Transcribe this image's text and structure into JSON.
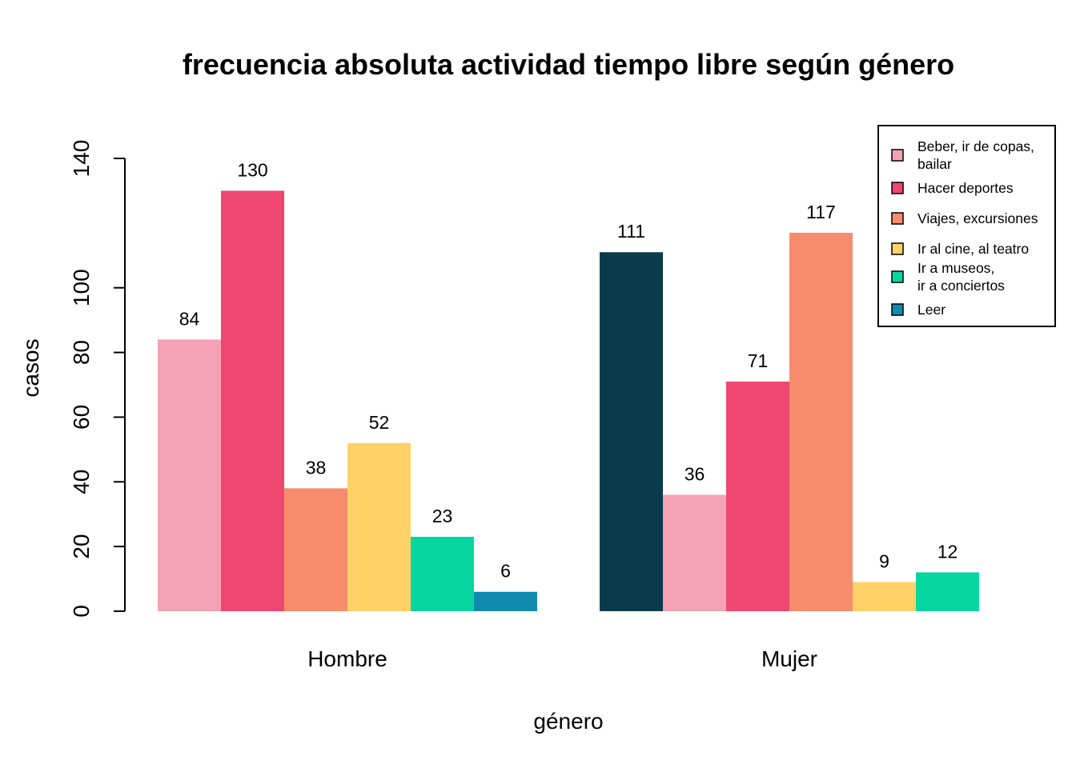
{
  "chart_data": {
    "type": "bar",
    "title": "frecuencia absoluta actividad tiempo libre según género",
    "xlabel": "género",
    "ylabel": "casos",
    "ylim": [
      0,
      140
    ],
    "yticks": [
      "0",
      "20",
      "40",
      "60",
      "80",
      "100",
      "140"
    ],
    "grid": false,
    "legend_position": "top-right",
    "colors": {
      "dark_teal": "#0A3B4B",
      "pink": "#F5A1B6",
      "red": "#EF476F",
      "salmon": "#F68C6B",
      "yellow": "#FFD166",
      "green": "#06D6A0",
      "blue": "#118AB2"
    },
    "legend": [
      {
        "label": "Beber, ir de copas,\nbailar",
        "color": "#F5A1B6"
      },
      {
        "label": "Hacer deportes",
        "color": "#EF476F"
      },
      {
        "label": "Viajes, excursiones",
        "color": "#F68C6B"
      },
      {
        "label": "Ir al cine, al teatro",
        "color": "#FFD166"
      },
      {
        "label": "Ir a museos,\nir a conciertos",
        "color": "#06D6A0"
      },
      {
        "label": "Leer",
        "color": "#118AB2"
      }
    ],
    "groups": [
      {
        "name": "Hombre",
        "bars": [
          {
            "value": 84,
            "label": "84",
            "color": "#F5A1B6"
          },
          {
            "value": 130,
            "label": "130",
            "color": "#EF476F"
          },
          {
            "value": 38,
            "label": "38",
            "color": "#F68C6B"
          },
          {
            "value": 52,
            "label": "52",
            "color": "#FFD166"
          },
          {
            "value": 23,
            "label": "23",
            "color": "#06D6A0"
          },
          {
            "value": 6,
            "label": "6",
            "color": "#118AB2"
          }
        ]
      },
      {
        "name": "Mujer",
        "bars": [
          {
            "value": 111,
            "label": "111",
            "color": "#0A3B4B"
          },
          {
            "value": 36,
            "label": "36",
            "color": "#F5A1B6"
          },
          {
            "value": 71,
            "label": "71",
            "color": "#EF476F"
          },
          {
            "value": 117,
            "label": "117",
            "color": "#F68C6B"
          },
          {
            "value": 9,
            "label": "9",
            "color": "#FFD166"
          },
          {
            "value": 12,
            "label": "12",
            "color": "#06D6A0"
          }
        ]
      }
    ]
  }
}
